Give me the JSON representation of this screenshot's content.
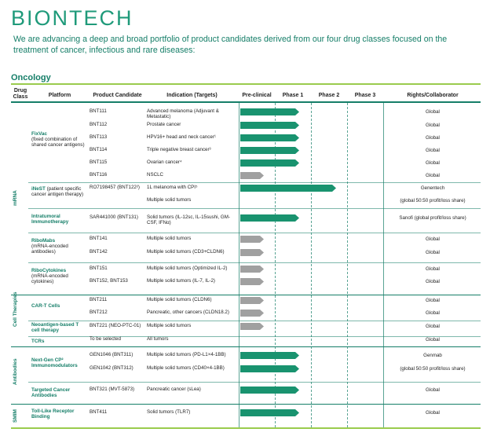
{
  "brand": {
    "name": "BIONTECH",
    "color": "#1f9a7a",
    "accent": "#9acb4d"
  },
  "intro": "We are advancing a deep and broad portfolio of product candidates derived from our four drug classes focused on the treatment of cancer, infectious and rare diseases:",
  "section_title": "Oncology",
  "headers": {
    "drug_class": "Drug Class",
    "platform": "Platform",
    "candidate": "Product Candidate",
    "indication": "Indication (Targets)",
    "preclinical": "Pre-clinical",
    "phase1": "Phase 1",
    "phase2": "Phase 2",
    "phase3": "Phase 3",
    "rights": "Rights/Collaborator"
  },
  "drug_classes": {
    "mrna": "mRNA",
    "cell": "Cell Therapies",
    "antibodies": "Antibodies",
    "smim": "SMIM"
  },
  "platforms": {
    "fixvac": {
      "name": "FixVac",
      "desc": "(fixed combination of shared cancer antigens)"
    },
    "inest": {
      "name": "iNeST",
      "desc": "(patient specific cancer antigen therapy)"
    },
    "intratumoral": {
      "name": "Intratumoral Immunotherapy",
      "desc": ""
    },
    "ribomabs": {
      "name": "RiboMabs",
      "desc": "(mRNA-encoded antibodies)"
    },
    "ribocytokines": {
      "name": "RiboCytokines",
      "desc": "(mRNA-encoded cytokines)"
    },
    "cart": {
      "name": "CAR-T Cells",
      "desc": ""
    },
    "neoantigen": {
      "name": "Neoantigen-based T cell therapy",
      "desc": ""
    },
    "tcrs": {
      "name": "TCRs",
      "desc": ""
    },
    "nextgen": {
      "name": "Next-Gen CP² Immunomodulators",
      "desc": ""
    },
    "targeted": {
      "name": "Targeted Cancer Antibodies",
      "desc": ""
    },
    "tlr": {
      "name": "Toll-Like Receptor Binding",
      "desc": ""
    }
  },
  "rows": [
    {
      "candidate": "BNT111",
      "indication": "Advanced melanoma (Adjuvant & Metastatic)",
      "stage": "phase1",
      "rights": "Global"
    },
    {
      "candidate": "BNT112",
      "indication": "Prostate cancer",
      "stage": "phase1",
      "rights": "Global"
    },
    {
      "candidate": "BNT113",
      "indication": "HPV16+ head and neck cancer¹",
      "stage": "phase1",
      "rights": "Global"
    },
    {
      "candidate": "BNT114",
      "indication": "Triple negative breast cancer³",
      "stage": "phase1",
      "rights": "Global"
    },
    {
      "candidate": "BNT115",
      "indication": "Ovarian cancer⁴",
      "stage": "phase1",
      "rights": "Global"
    },
    {
      "candidate": "BNT116",
      "indication": "NSCLC",
      "stage": "preclinical",
      "rights": "Global"
    },
    {
      "candidate": "RO7198457 (BNT122²)",
      "indication": "1L melanoma with CPI⁵",
      "stage": "phase2",
      "rights": "Genentech"
    },
    {
      "candidate": "",
      "indication": "Multiple solid tumors",
      "stage": "",
      "rights": "(global 50:50 profit/loss share)"
    },
    {
      "candidate": "SAR441000 (BNT131)",
      "indication": "Solid tumors (IL-12sc, IL-15sushi, GM-CSF, IFNα)",
      "stage": "phase1",
      "rights": "Sanofi (global profit/loss share)"
    },
    {
      "candidate": "BNT141",
      "indication": "Multiple solid tumors",
      "stage": "preclinical",
      "rights": "Global"
    },
    {
      "candidate": "BNT142",
      "indication": "Multiple solid tumors (CD3+CLDN6)",
      "stage": "preclinical",
      "rights": "Global"
    },
    {
      "candidate": "BNT151",
      "indication": "Multiple solid tumors (Optimized IL-2)",
      "stage": "preclinical",
      "rights": "Global"
    },
    {
      "candidate": "BNT152, BNT153",
      "indication": "Multiple solid tumors (IL-7, IL-2)",
      "stage": "preclinical",
      "rights": "Global"
    },
    {
      "candidate": "BNT211",
      "indication": "Multiple solid tumors (CLDN6)",
      "stage": "preclinical",
      "rights": "Global"
    },
    {
      "candidate": "BNT212",
      "indication": "Pancreatic, other cancers (CLDN18.2)",
      "stage": "preclinical",
      "rights": "Global"
    },
    {
      "candidate": "BNT221 (NEO-PTC-01)",
      "indication": "Multiple solid tumors",
      "stage": "preclinical",
      "rights": "Global"
    },
    {
      "candidate": "To be selected",
      "indication": "All tumors",
      "stage": "",
      "rights": "Global"
    },
    {
      "candidate": "GEN1046 (BNT311)",
      "indication": "Multiple solid tumors (PD-L1×4-1BB)",
      "stage": "phase1",
      "rights": "Genmab"
    },
    {
      "candidate": "GEN1042 (BNT312)",
      "indication": "Multiple solid tumors (CD40×4-1BB)",
      "stage": "phase1",
      "rights": "(global 50:50 profit/loss share)"
    },
    {
      "candidate": "BNT321 (MVT-5873)",
      "indication": "Pancreatic cancer (sLea)",
      "stage": "phase1",
      "rights": "Global"
    },
    {
      "candidate": "BNT411",
      "indication": "Solid tumors (TLR7)",
      "stage": "phase1",
      "rights": "Global"
    }
  ]
}
